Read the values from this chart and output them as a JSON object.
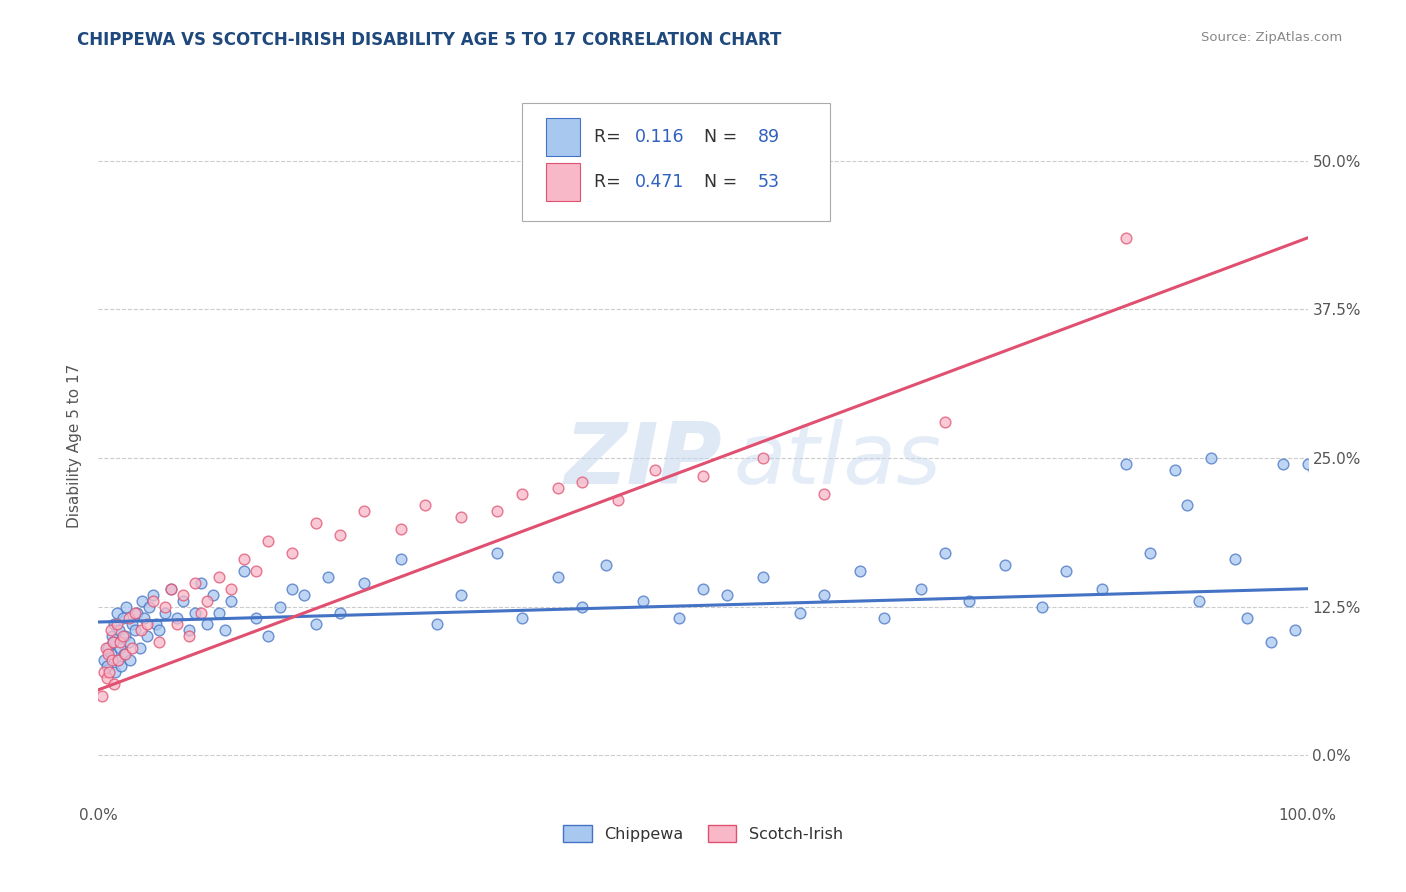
{
  "title": "CHIPPEWA VS SCOTCH-IRISH DISABILITY AGE 5 TO 17 CORRELATION CHART",
  "source_text": "Source: ZipAtlas.com",
  "ylabel": "Disability Age 5 to 17",
  "ytick_labels": [
    "0.0%",
    "12.5%",
    "25.0%",
    "37.5%",
    "50.0%"
  ],
  "ytick_values": [
    0.0,
    12.5,
    25.0,
    37.5,
    50.0
  ],
  "xlim": [
    0.0,
    100.0
  ],
  "ylim": [
    -4.0,
    56.0
  ],
  "chippewa_R": 0.116,
  "chippewa_N": 89,
  "scotch_irish_R": 0.471,
  "scotch_irish_N": 53,
  "chippewa_color": "#a8c8f0",
  "scotch_irish_color": "#f8b8c8",
  "chippewa_line_color": "#4472c4",
  "scotch_irish_line_color": "#e05070",
  "title_color": "#1f497d",
  "source_color": "#888888",
  "background_color": "#ffffff",
  "watermark_color": "#c5d8ef",
  "grid_color": "#cccccc",
  "chippewa_trend_x": [
    0.0,
    100.0
  ],
  "chippewa_trend_y": [
    11.2,
    14.0
  ],
  "scotch_trend_x": [
    0.0,
    100.0
  ],
  "scotch_trend_y": [
    5.5,
    43.5
  ],
  "chippewa_x": [
    0.5,
    0.7,
    0.8,
    1.0,
    1.1,
    1.2,
    1.3,
    1.4,
    1.5,
    1.6,
    1.7,
    1.8,
    1.9,
    2.0,
    2.1,
    2.2,
    2.3,
    2.5,
    2.6,
    2.8,
    3.0,
    3.2,
    3.4,
    3.6,
    3.8,
    4.0,
    4.2,
    4.5,
    4.8,
    5.0,
    5.5,
    6.0,
    6.5,
    7.0,
    7.5,
    8.0,
    8.5,
    9.0,
    9.5,
    10.0,
    10.5,
    11.0,
    12.0,
    13.0,
    14.0,
    15.0,
    16.0,
    17.0,
    18.0,
    19.0,
    20.0,
    22.0,
    25.0,
    28.0,
    30.0,
    33.0,
    35.0,
    38.0,
    40.0,
    42.0,
    45.0,
    48.0,
    50.0,
    52.0,
    55.0,
    58.0,
    60.0,
    63.0,
    65.0,
    68.0,
    70.0,
    72.0,
    75.0,
    78.0,
    80.0,
    83.0,
    85.0,
    87.0,
    89.0,
    90.0,
    91.0,
    92.0,
    94.0,
    95.0,
    97.0,
    98.0,
    99.0,
    100.0,
    100.5
  ],
  "chippewa_y": [
    8.0,
    7.5,
    9.0,
    8.5,
    10.0,
    9.5,
    11.0,
    7.0,
    12.0,
    8.0,
    10.5,
    9.0,
    7.5,
    11.5,
    8.5,
    10.0,
    12.5,
    9.5,
    8.0,
    11.0,
    10.5,
    12.0,
    9.0,
    13.0,
    11.5,
    10.0,
    12.5,
    13.5,
    11.0,
    10.5,
    12.0,
    14.0,
    11.5,
    13.0,
    10.5,
    12.0,
    14.5,
    11.0,
    13.5,
    12.0,
    10.5,
    13.0,
    15.5,
    11.5,
    10.0,
    12.5,
    14.0,
    13.5,
    11.0,
    15.0,
    12.0,
    14.5,
    16.5,
    11.0,
    13.5,
    17.0,
    11.5,
    15.0,
    12.5,
    16.0,
    13.0,
    11.5,
    14.0,
    13.5,
    15.0,
    12.0,
    13.5,
    15.5,
    11.5,
    14.0,
    17.0,
    13.0,
    16.0,
    12.5,
    15.5,
    14.0,
    24.5,
    17.0,
    24.0,
    21.0,
    13.0,
    25.0,
    16.5,
    11.5,
    9.5,
    24.5,
    10.5,
    24.5,
    24.0
  ],
  "scotch_x": [
    0.3,
    0.5,
    0.6,
    0.7,
    0.8,
    0.9,
    1.0,
    1.1,
    1.2,
    1.3,
    1.5,
    1.6,
    1.8,
    2.0,
    2.2,
    2.5,
    2.8,
    3.0,
    3.5,
    4.0,
    4.5,
    5.0,
    5.5,
    6.0,
    6.5,
    7.0,
    7.5,
    8.0,
    8.5,
    9.0,
    10.0,
    11.0,
    12.0,
    13.0,
    14.0,
    16.0,
    18.0,
    20.0,
    22.0,
    25.0,
    27.0,
    30.0,
    33.0,
    35.0,
    38.0,
    40.0,
    43.0,
    46.0,
    50.0,
    55.0,
    60.0,
    70.0,
    85.0
  ],
  "scotch_y": [
    5.0,
    7.0,
    9.0,
    6.5,
    8.5,
    7.0,
    10.5,
    8.0,
    9.5,
    6.0,
    11.0,
    8.0,
    9.5,
    10.0,
    8.5,
    11.5,
    9.0,
    12.0,
    10.5,
    11.0,
    13.0,
    9.5,
    12.5,
    14.0,
    11.0,
    13.5,
    10.0,
    14.5,
    12.0,
    13.0,
    15.0,
    14.0,
    16.5,
    15.5,
    18.0,
    17.0,
    19.5,
    18.5,
    20.5,
    19.0,
    21.0,
    20.0,
    20.5,
    22.0,
    22.5,
    23.0,
    21.5,
    24.0,
    23.5,
    25.0,
    22.0,
    28.0,
    43.5
  ]
}
